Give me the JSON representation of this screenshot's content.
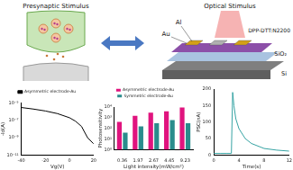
{
  "diagram": {
    "presynaptic_label": "Presynaptic Stimulus",
    "optical_label": "Optical Stimulus",
    "layers": [
      "Al",
      "Au",
      "DPP-DTT:N2200",
      "SiO₂",
      "Si"
    ]
  },
  "chart_data": [
    {
      "type": "line",
      "x_label": "Vg(V)",
      "y_label": "-Id(A)",
      "x": [
        -40,
        -30,
        -20,
        -10,
        0,
        5,
        10,
        15,
        20
      ],
      "series": [
        {
          "name": "Asymmetric electrode-Au",
          "color": "#000000",
          "values": [
            3e-06,
            2e-06,
            1.2e-06,
            6e-07,
            2e-07,
            8e-08,
            2e-08,
            1e-09,
            2e-10
          ]
        }
      ],
      "xlim": [
        -40,
        20
      ],
      "xticks": [
        -40,
        -20,
        0,
        20
      ],
      "log": "y",
      "ylim": [
        1e-11,
        1e-05
      ],
      "yticks": [
        {
          "value": 1e-11,
          "label": "10⁻¹¹"
        },
        {
          "value": 1e-09,
          "label": "10⁻⁹"
        },
        {
          "value": 1e-07,
          "label": "10⁻⁷"
        },
        {
          "value": 1e-05,
          "label": "10⁻⁵"
        }
      ],
      "grid": false,
      "legend": "top"
    },
    {
      "type": "bar",
      "x_label": "Light intensity(mW/cm²)",
      "y_label": "Photosensitivity",
      "categories": [
        "0.36",
        "1.97",
        "2.67",
        "4.45",
        "9.23"
      ],
      "series": [
        {
          "name": "Asymmetric electrode-Au",
          "color": "#e0147e",
          "values": [
            400,
            1500,
            3000,
            4000,
            9000
          ]
        },
        {
          "name": "Symmetric electrode-Au",
          "color": "#2a8c8c",
          "values": [
            40,
            150,
            300,
            600,
            300
          ]
        }
      ],
      "log": "y",
      "ylim": [
        1,
        10000
      ],
      "yticks": [
        {
          "value": 1,
          "label": "10⁰"
        },
        {
          "value": 10,
          "label": "10¹"
        },
        {
          "value": 100,
          "label": "10²"
        },
        {
          "value": 1000,
          "label": "10³"
        },
        {
          "value": 10000,
          "label": "10⁴"
        }
      ],
      "grid": false,
      "legend": "top"
    },
    {
      "type": "line",
      "x_label": "Time(s)",
      "y_label": "PSC(nA)",
      "x": [
        0,
        1,
        2,
        2.8,
        3,
        3.2,
        3.5,
        4,
        5,
        6,
        8,
        10,
        12
      ],
      "values": [
        5,
        5,
        5,
        5,
        190,
        150,
        110,
        80,
        50,
        35,
        20,
        15,
        12
      ],
      "color": "#36a3a3",
      "xlim": [
        0,
        12
      ],
      "xticks": [
        0,
        4,
        8,
        12
      ],
      "ylim": [
        0,
        200
      ],
      "yticks": [
        0,
        50,
        100,
        150,
        200
      ],
      "grid": false
    }
  ]
}
